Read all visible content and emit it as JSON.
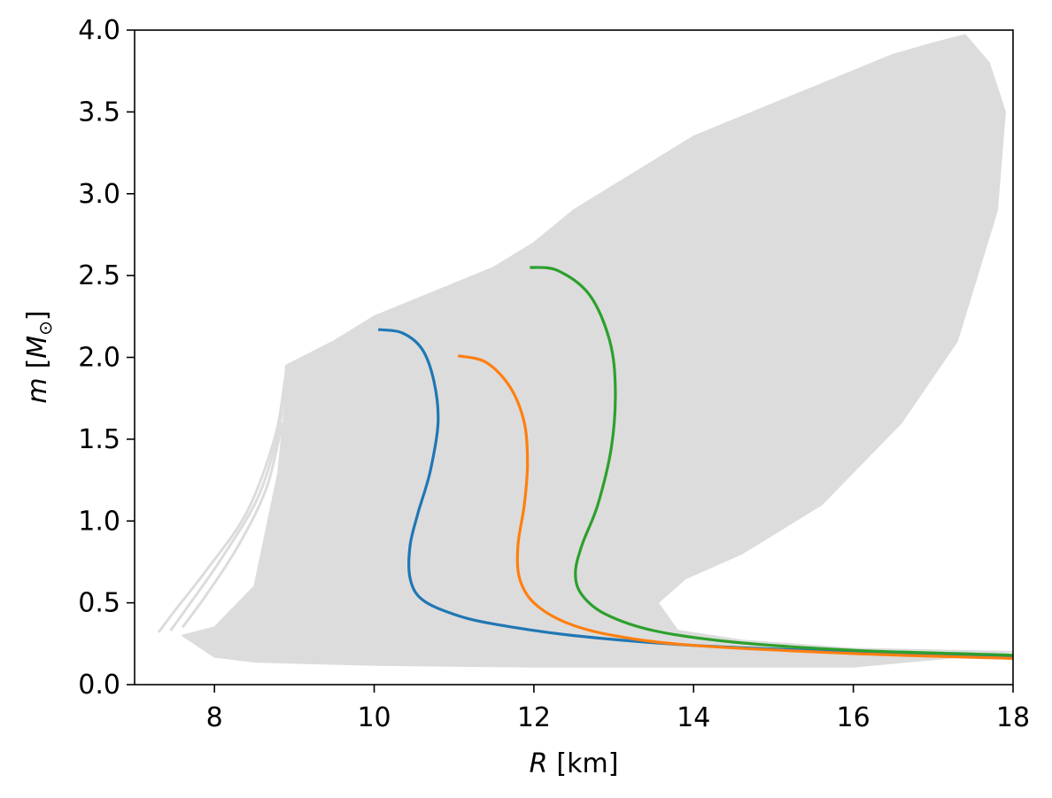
{
  "chart_data": {
    "type": "line",
    "xlabel": {
      "var": "R",
      "unit": "[km]"
    },
    "ylabel": {
      "var": "m",
      "open": "[",
      "sym": "M",
      "sub": "⊙",
      "close": "]"
    },
    "xlim": [
      7,
      18
    ],
    "ylim": [
      0,
      4
    ],
    "xticks": [
      {
        "value": 8,
        "label": "8"
      },
      {
        "value": 10,
        "label": "10"
      },
      {
        "value": 12,
        "label": "12"
      },
      {
        "value": 14,
        "label": "14"
      },
      {
        "value": 16,
        "label": "16"
      },
      {
        "value": 18,
        "label": "18"
      }
    ],
    "yticks": [
      {
        "value": 0.0,
        "label": "0.0"
      },
      {
        "value": 0.5,
        "label": "0.5"
      },
      {
        "value": 1.0,
        "label": "1.0"
      },
      {
        "value": 1.5,
        "label": "1.5"
      },
      {
        "value": 2.0,
        "label": "2.0"
      },
      {
        "value": 2.5,
        "label": "2.5"
      },
      {
        "value": 3.0,
        "label": "3.0"
      },
      {
        "value": 3.5,
        "label": "3.5"
      },
      {
        "value": 4.0,
        "label": "4.0"
      }
    ],
    "grid": false,
    "legend": "none",
    "band": {
      "color": "#dcdcdc",
      "left_boundary": [
        [
          7.6,
          0.3
        ],
        [
          8.0,
          0.35
        ],
        [
          8.5,
          0.6
        ],
        [
          8.8,
          1.3
        ],
        [
          8.9,
          1.8
        ],
        [
          8.9,
          1.95
        ]
      ],
      "top_edge": [
        [
          8.9,
          1.95
        ],
        [
          9.5,
          2.1
        ],
        [
          10.0,
          2.25
        ],
        [
          10.5,
          2.35
        ],
        [
          11.0,
          2.45
        ],
        [
          11.5,
          2.55
        ],
        [
          12.0,
          2.7
        ],
        [
          12.5,
          2.9
        ],
        [
          13.0,
          3.05
        ],
        [
          13.5,
          3.2
        ],
        [
          14.0,
          3.35
        ],
        [
          14.5,
          3.45
        ],
        [
          15.0,
          3.55
        ],
        [
          15.5,
          3.65
        ],
        [
          16.0,
          3.75
        ],
        [
          16.5,
          3.85
        ],
        [
          17.0,
          3.92
        ],
        [
          17.4,
          3.97
        ]
      ],
      "right_boundary": [
        [
          17.4,
          3.97
        ],
        [
          17.7,
          3.8
        ],
        [
          17.9,
          3.5
        ],
        [
          17.8,
          2.9
        ],
        [
          17.3,
          2.1
        ],
        [
          16.6,
          1.6
        ],
        [
          15.6,
          1.1
        ],
        [
          14.6,
          0.8
        ],
        [
          13.9,
          0.65
        ],
        [
          13.55,
          0.5
        ],
        [
          13.8,
          0.33
        ],
        [
          14.6,
          0.27
        ],
        [
          16.0,
          0.22
        ],
        [
          18.0,
          0.2
        ]
      ],
      "bottom_edge": [
        [
          18.0,
          0.1
        ],
        [
          16.0,
          0.11
        ],
        [
          12.0,
          0.11
        ],
        [
          10.0,
          0.12
        ],
        [
          8.5,
          0.14
        ],
        [
          8.0,
          0.17
        ],
        [
          7.6,
          0.3
        ]
      ],
      "outer_curves": [
        [
          [
            7.3,
            0.32
          ],
          [
            7.5,
            0.45
          ],
          [
            7.9,
            0.7
          ],
          [
            8.4,
            1.05
          ],
          [
            8.75,
            1.5
          ],
          [
            8.88,
            1.85
          ],
          [
            8.9,
            1.95
          ]
        ],
        [
          [
            7.45,
            0.33
          ],
          [
            7.7,
            0.5
          ],
          [
            8.1,
            0.78
          ],
          [
            8.55,
            1.15
          ],
          [
            8.8,
            1.55
          ],
          [
            8.9,
            1.9
          ]
        ],
        [
          [
            7.6,
            0.35
          ],
          [
            7.9,
            0.55
          ],
          [
            8.3,
            0.85
          ],
          [
            8.65,
            1.2
          ],
          [
            8.85,
            1.6
          ]
        ]
      ]
    },
    "series": [
      {
        "color": "#1f77b4",
        "points": [
          [
            18.0,
            0.17
          ],
          [
            16.0,
            0.2
          ],
          [
            14.0,
            0.24
          ],
          [
            12.5,
            0.3
          ],
          [
            11.5,
            0.37
          ],
          [
            11.0,
            0.43
          ],
          [
            10.6,
            0.52
          ],
          [
            10.45,
            0.65
          ],
          [
            10.45,
            0.85
          ],
          [
            10.55,
            1.05
          ],
          [
            10.7,
            1.3
          ],
          [
            10.8,
            1.6
          ],
          [
            10.75,
            1.85
          ],
          [
            10.6,
            2.05
          ],
          [
            10.35,
            2.15
          ],
          [
            10.05,
            2.17
          ]
        ]
      },
      {
        "color": "#ff7f0e",
        "points": [
          [
            18.0,
            0.16
          ],
          [
            16.0,
            0.19
          ],
          [
            14.0,
            0.24
          ],
          [
            13.0,
            0.3
          ],
          [
            12.4,
            0.38
          ],
          [
            12.0,
            0.5
          ],
          [
            11.82,
            0.65
          ],
          [
            11.8,
            0.85
          ],
          [
            11.88,
            1.1
          ],
          [
            11.92,
            1.35
          ],
          [
            11.88,
            1.6
          ],
          [
            11.7,
            1.82
          ],
          [
            11.4,
            1.97
          ],
          [
            11.05,
            2.01
          ]
        ]
      },
      {
        "color": "#2ca02c",
        "points": [
          [
            18.0,
            0.18
          ],
          [
            16.0,
            0.21
          ],
          [
            14.5,
            0.26
          ],
          [
            13.5,
            0.33
          ],
          [
            12.9,
            0.43
          ],
          [
            12.6,
            0.55
          ],
          [
            12.52,
            0.68
          ],
          [
            12.6,
            0.85
          ],
          [
            12.8,
            1.1
          ],
          [
            12.97,
            1.45
          ],
          [
            13.02,
            1.8
          ],
          [
            12.95,
            2.1
          ],
          [
            12.7,
            2.38
          ],
          [
            12.3,
            2.53
          ],
          [
            11.95,
            2.55
          ]
        ]
      }
    ]
  }
}
